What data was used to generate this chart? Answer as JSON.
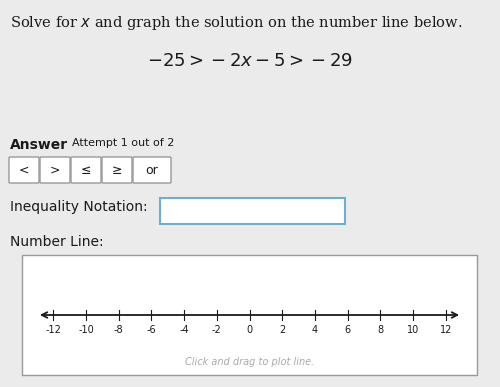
{
  "title_text": "Solve for $x$ and graph the solution on the number line below.",
  "equation": "$-25 > -2x - 5 > -29$",
  "answer_label": "Answer",
  "attempt_label": "Attempt 1 out of 2",
  "buttons": [
    "<",
    ">",
    "≤",
    "≥",
    "or"
  ],
  "inequality_label": "Inequality Notation:",
  "numberline_label": "Number Line:",
  "nl_min": -13,
  "nl_max": 13,
  "nl_ticks": [
    -12,
    -10,
    -8,
    -6,
    -4,
    -2,
    0,
    2,
    4,
    6,
    8,
    10,
    12
  ],
  "nl_hint": "Click and drag to plot line.",
  "bg_color": "#ebebeb",
  "white": "#ffffff",
  "box_border_color": "#6baed6",
  "button_border_color": "#999999",
  "text_color": "#1a1a1a",
  "gray_text": "#aaaaaa",
  "title_fontsize": 10.5,
  "eq_fontsize": 13,
  "label_fontsize": 10,
  "btn_fontsize": 9,
  "tick_fontsize": 7,
  "hint_fontsize": 7
}
